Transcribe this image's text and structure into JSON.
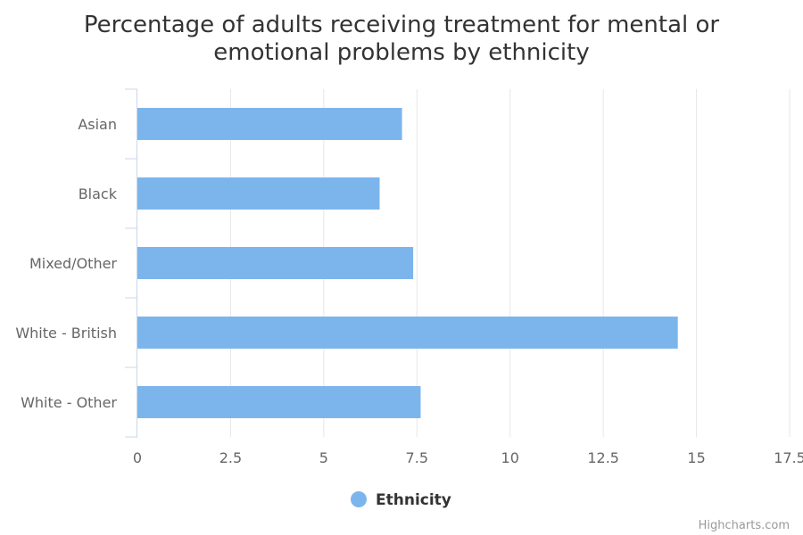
{
  "chart_data": {
    "type": "bar",
    "orientation": "horizontal",
    "title_lines": [
      "Percentage of adults receiving treatment for mental or",
      "emotional problems by ethnicity"
    ],
    "categories": [
      "Asian",
      "Black",
      "Mixed/Other",
      "White - British",
      "White - Other"
    ],
    "series": [
      {
        "name": "Ethnicity",
        "values": [
          7.1,
          6.5,
          7.4,
          14.5,
          7.6
        ],
        "color": "#7cb5ec"
      }
    ],
    "xlim": [
      0,
      17.5
    ],
    "x_ticks": [
      0,
      2.5,
      5,
      7.5,
      10,
      12.5,
      15,
      17.5
    ],
    "x_tick_labels": [
      "0",
      "2.5",
      "5",
      "7.5",
      "10",
      "12.5",
      "15",
      "17.5"
    ],
    "grid": true,
    "legend_position": "bottom-center"
  },
  "colors": {
    "bar": "#7cb5ec",
    "grid": "#e6e6e6",
    "axis": "#ccd6eb"
  },
  "credits": "Highcharts.com"
}
